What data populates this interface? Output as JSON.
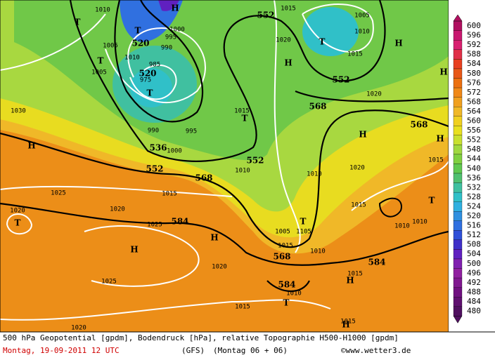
{
  "map": {
    "geopotential_labels": [
      552,
      520,
      520,
      536,
      552,
      568,
      552,
      584,
      568,
      552,
      568,
      568,
      584,
      584
    ],
    "isobar_labels": [
      1010,
      1005,
      1010,
      1000,
      995,
      990,
      985,
      975,
      1005,
      990,
      995,
      1000,
      1015,
      1005,
      1010,
      1015,
      1020,
      1020,
      1030,
      1015,
      1010,
      1010,
      1020,
      1015,
      1015,
      1025,
      1015,
      1020,
      1020,
      1025,
      1010,
      1010,
      1005,
      1105,
      1015,
      1010,
      1020,
      1025,
      1015,
      1015,
      1010,
      1015,
      1020
    ],
    "pressure_centers": [
      "T",
      "T",
      "H",
      "T",
      "T",
      "H",
      "T",
      "T",
      "H",
      "H",
      "H",
      "H",
      "H",
      "T",
      "H",
      "H",
      "T",
      "T",
      "H",
      "T",
      "H"
    ],
    "colorbar": {
      "levels": [
        600,
        596,
        592,
        588,
        584,
        580,
        576,
        572,
        568,
        564,
        560,
        556,
        552,
        548,
        544,
        540,
        536,
        532,
        528,
        524,
        520,
        516,
        512,
        508,
        504,
        500,
        496,
        492,
        488,
        484,
        480
      ],
      "colors": [
        "#b01060",
        "#c81870",
        "#d82070",
        "#e03048",
        "#e84020",
        "#e85818",
        "#ec7010",
        "#f08818",
        "#f0a020",
        "#f0b828",
        "#f0d020",
        "#e8e020",
        "#c8e030",
        "#a0d840",
        "#80d040",
        "#60c850",
        "#50c070",
        "#40c0a0",
        "#30c0c8",
        "#30b0e0",
        "#3090e0",
        "#3070e0",
        "#3050d8",
        "#4030c8",
        "#6020c0",
        "#8020b0",
        "#9020a0",
        "#801890",
        "#701080",
        "#601070",
        "#501060"
      ]
    },
    "caption": {
      "description": "500 hPa Geopotential [gpdm], Bodendruck [hPa], relative Topographie H500-H1000 [gpdm]",
      "date": "Montag, 19-09-2011  12 UTC",
      "model": "(GFS)",
      "run": "(Montag 06 + 06)",
      "credit": "©www.wetter3.de"
    }
  }
}
